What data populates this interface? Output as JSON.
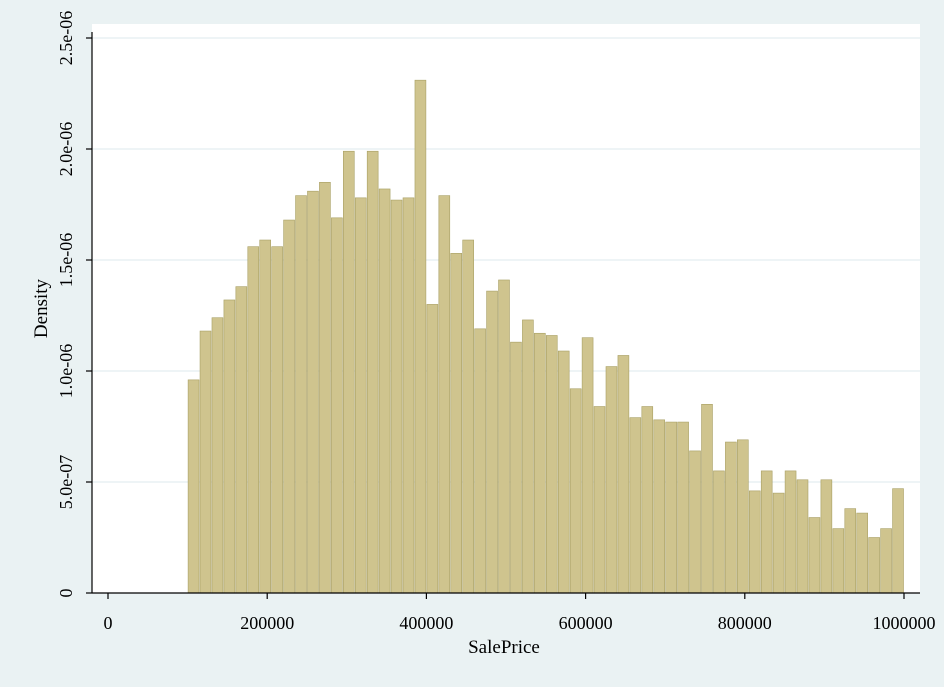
{
  "chart_data": {
    "type": "bar",
    "xlabel": "SalePrice",
    "ylabel": "Density",
    "xlim": [
      0,
      1000000
    ],
    "ylim": [
      0,
      2.5e-06
    ],
    "x_ticks": [
      0,
      200000,
      400000,
      600000,
      800000,
      1000000
    ],
    "x_tick_labels": [
      "0",
      "200000",
      "400000",
      "600000",
      "800000",
      "1000000"
    ],
    "y_ticks": [
      0,
      5e-07,
      1e-06,
      1.5e-06,
      2e-06,
      2.5e-06
    ],
    "y_tick_labels": [
      "0",
      "5.0e-07",
      "1.0e-06",
      "1.5e-06",
      "2.0e-06",
      "2.5e-06"
    ],
    "grid": true,
    "bin_start": 100000,
    "bin_width": 15000,
    "values": [
      9.6e-07,
      1.18e-06,
      1.24e-06,
      1.32e-06,
      1.38e-06,
      1.56e-06,
      1.59e-06,
      1.56e-06,
      1.68e-06,
      1.79e-06,
      1.81e-06,
      1.85e-06,
      1.69e-06,
      1.99e-06,
      1.78e-06,
      1.99e-06,
      1.82e-06,
      1.77e-06,
      1.78e-06,
      2.31e-06,
      1.3e-06,
      1.79e-06,
      1.53e-06,
      1.59e-06,
      1.19e-06,
      1.36e-06,
      1.41e-06,
      1.13e-06,
      1.23e-06,
      1.17e-06,
      1.16e-06,
      1.09e-06,
      9.2e-07,
      1.15e-06,
      8.4e-07,
      1.02e-06,
      1.07e-06,
      7.9e-07,
      8.4e-07,
      7.8e-07,
      7.7e-07,
      7.7e-07,
      6.4e-07,
      8.5e-07,
      5.5e-07,
      6.8e-07,
      6.9e-07,
      4.6e-07,
      5.5e-07,
      4.5e-07,
      5.5e-07,
      5.1e-07,
      3.4e-07,
      5.1e-07,
      2.9e-07,
      3.8e-07,
      3.6e-07,
      2.5e-07,
      2.9e-07,
      4.7e-07
    ],
    "colors": {
      "bar_fill": "#cfc48e",
      "bar_stroke": "#a89f63",
      "plot_background": "#ffffff",
      "page_background": "#eaf2f3",
      "grid": "#e4edf0",
      "axis": "#000000"
    }
  }
}
